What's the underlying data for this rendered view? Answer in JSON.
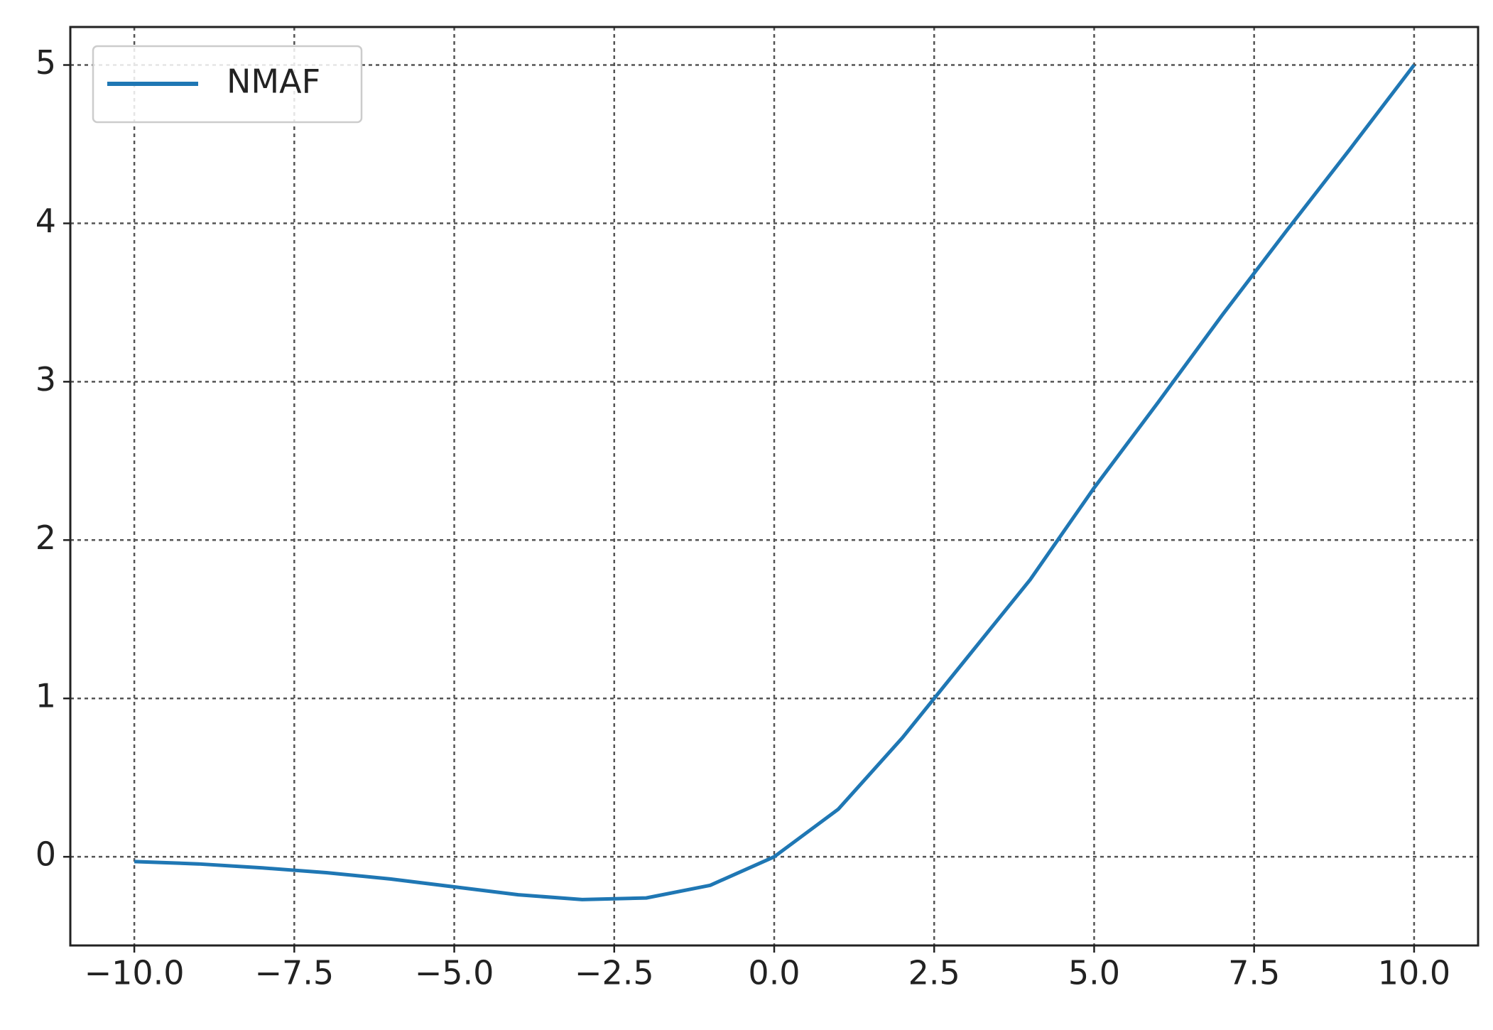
{
  "chart_data": {
    "type": "line",
    "x": [
      -10,
      -9,
      -8,
      -7,
      -6,
      -5,
      -4,
      -3,
      -2,
      -1,
      0,
      1,
      2,
      3,
      4,
      5,
      6,
      7,
      8,
      9,
      10
    ],
    "series": [
      {
        "name": "NMAF",
        "color": "#1f77b4",
        "values": [
          -0.03,
          -0.045,
          -0.07,
          -0.1,
          -0.14,
          -0.19,
          -0.24,
          -0.27,
          -0.26,
          -0.18,
          0,
          0.3,
          0.75,
          1.25,
          1.75,
          2.33,
          2.87,
          3.42,
          3.95,
          4.47,
          5.0
        ]
      }
    ],
    "xlim": [
      -11,
      11
    ],
    "ylim": [
      -0.56,
      5.24
    ],
    "xticks": [
      {
        "value": -10,
        "label": "−10.0"
      },
      {
        "value": -7.5,
        "label": "−7.5"
      },
      {
        "value": -5,
        "label": "−5.0"
      },
      {
        "value": -2.5,
        "label": "−2.5"
      },
      {
        "value": 0,
        "label": "0.0"
      },
      {
        "value": 2.5,
        "label": "2.5"
      },
      {
        "value": 5,
        "label": "5.0"
      },
      {
        "value": 7.5,
        "label": "7.5"
      },
      {
        "value": 10,
        "label": "10.0"
      }
    ],
    "yticks": [
      0,
      1,
      2,
      3,
      4,
      5
    ],
    "grid": true,
    "legend": "upper-left"
  }
}
